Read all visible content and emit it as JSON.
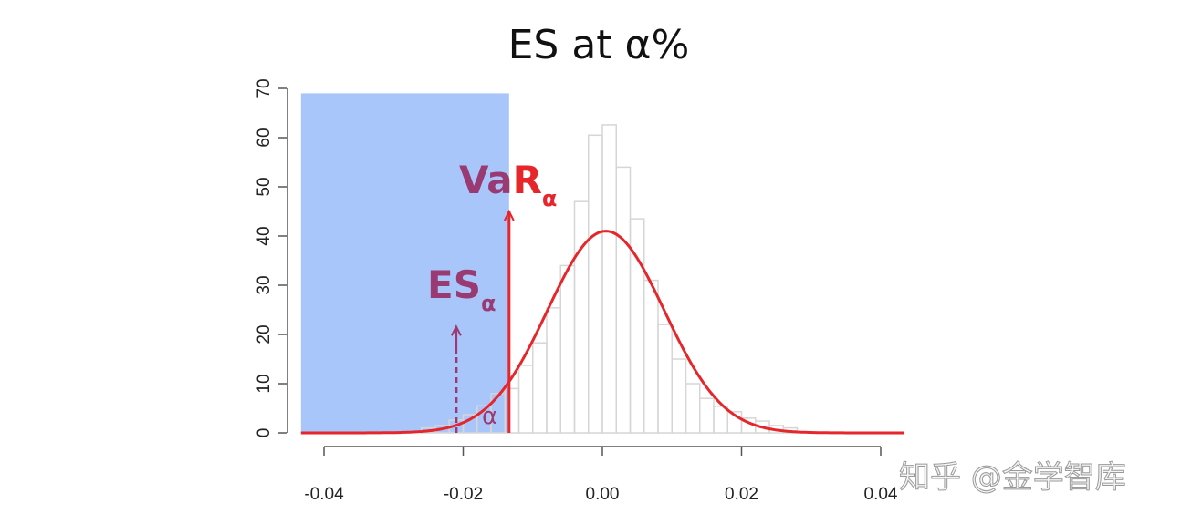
{
  "chart_data": {
    "type": "bar",
    "title": "ES at α%",
    "xlabel": "",
    "ylabel": "",
    "xlim": [
      -0.044,
      0.043
    ],
    "ylim": [
      0,
      70
    ],
    "x_ticks": [
      "-0.04",
      "-0.02",
      "0.00",
      "0.02",
      "0.04"
    ],
    "x_tick_values": [
      -0.04,
      -0.02,
      0.0,
      0.02,
      0.04
    ],
    "y_ticks": [
      "0",
      "10",
      "20",
      "30",
      "40",
      "50",
      "60",
      "70"
    ],
    "y_tick_values": [
      0,
      10,
      20,
      30,
      40,
      50,
      60,
      70
    ],
    "grid": false,
    "histogram": {
      "bin_start": -0.026,
      "bin_width": 0.002,
      "counts": [
        1,
        1.5,
        2.6,
        3.7,
        5.5,
        8,
        9,
        13.7,
        18.3,
        25.4,
        34,
        47,
        60.5,
        62.6,
        54,
        43.5,
        31,
        22,
        15,
        10,
        7,
        5.4,
        4.3,
        3,
        2.4,
        1.5,
        1
      ]
    },
    "normal_curve": {
      "mean": 0.0005,
      "sd": 0.0084,
      "peak": 41,
      "x_range": [
        -0.0433,
        0.0433
      ]
    },
    "tail_region": {
      "x_from": -0.0433,
      "x_to": -0.0134,
      "y_top": 69
    },
    "var_line": {
      "x": -0.0134,
      "y_top": 45
    },
    "es_line": {
      "x": -0.021,
      "y_top": 21.6
    },
    "annotations": {
      "var_label_a": "Va",
      "var_label_b": "R",
      "var_sub": "α",
      "es_label": "ES",
      "es_sub": "α",
      "alpha_label": "α"
    },
    "colors": {
      "tail": "#a9c6fb",
      "curve": "#e5262b",
      "purple": "#9a3a72",
      "bar_edge": "#d6d6d6",
      "axis": "#555555"
    }
  },
  "watermark": "知乎 @金学智库"
}
